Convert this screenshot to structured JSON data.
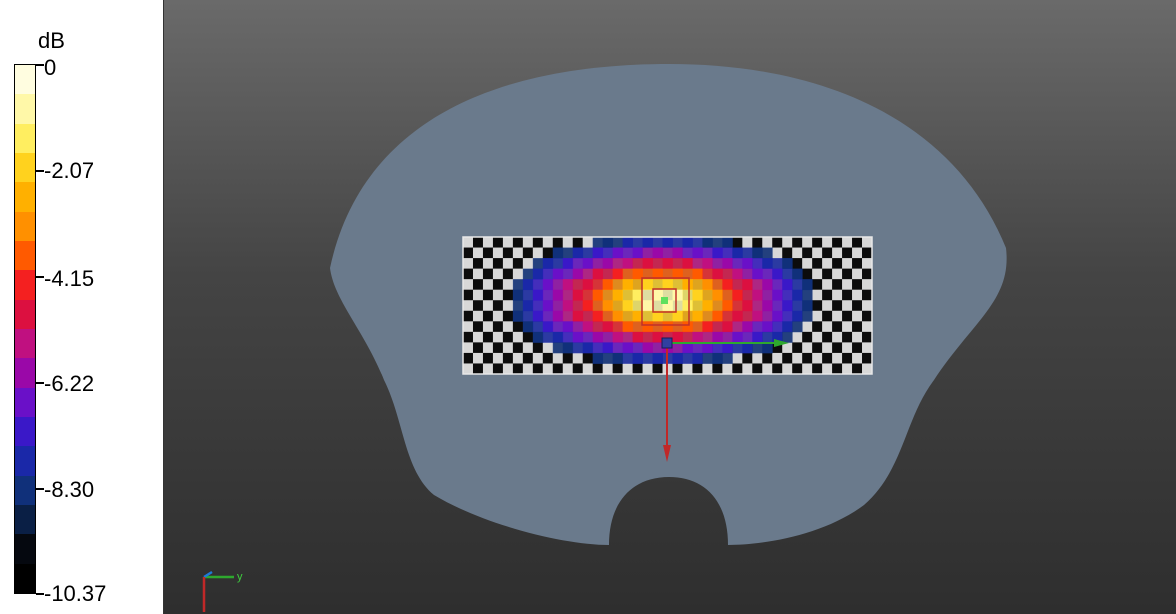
{
  "legend": {
    "unit": "dB",
    "ticks": [
      "0",
      "-2.07",
      "-4.15",
      "-6.22",
      "-8.30",
      "-10.37"
    ],
    "colors": [
      "#fffde0",
      "#fff8a8",
      "#ffee60",
      "#ffd21e",
      "#ffb000",
      "#ff9000",
      "#ff5a00",
      "#f42020",
      "#dc1040",
      "#c01080",
      "#9a08a8",
      "#6a10c8",
      "#3a18c8",
      "#1a28a8",
      "#10307a",
      "#0a1f45",
      "#05080f",
      "#000000"
    ]
  },
  "viewport": {
    "phantom_color": "#6a7a8c",
    "measurement_grid": {
      "cols": 41,
      "rows": 13,
      "peak_col": 19.5,
      "peak_row": 5.5
    },
    "orientation_axis_label": "y"
  }
}
